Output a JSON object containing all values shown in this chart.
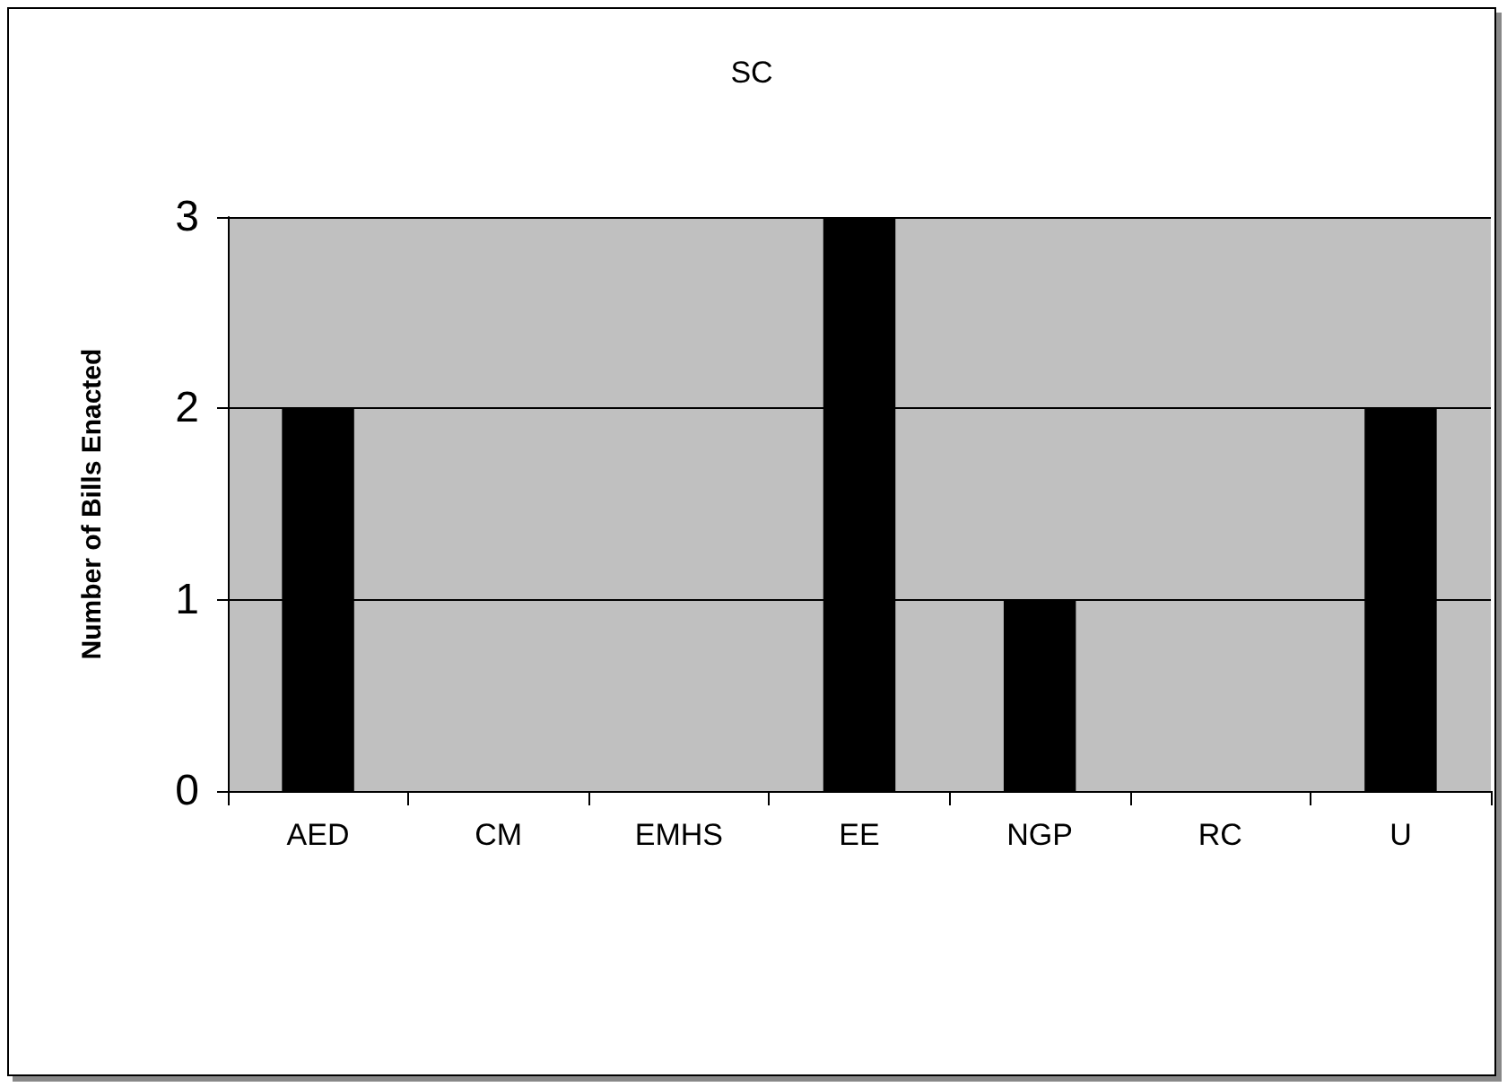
{
  "chart_data": {
    "type": "bar",
    "title": "SC",
    "ylabel": "Number of Bills Enacted",
    "categories": [
      "AED",
      "CM",
      "EMHS",
      "EE",
      "NGP",
      "RC",
      "U"
    ],
    "values": [
      2,
      0,
      0,
      3,
      1,
      0,
      2
    ],
    "color": "#000000",
    "ylim": [
      0,
      3
    ],
    "yticks": [
      0,
      1,
      2,
      3
    ],
    "grid": "y"
  }
}
